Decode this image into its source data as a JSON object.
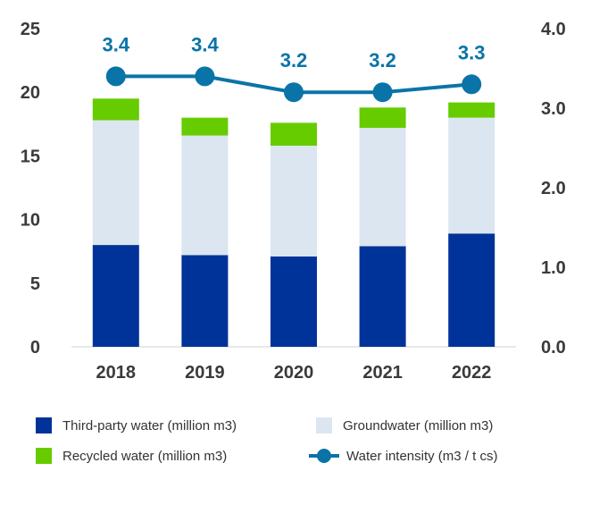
{
  "chart_data": {
    "type": "bar",
    "stacked": true,
    "title": "",
    "xlabel": "",
    "ylabel": "",
    "ylabel_right": "",
    "categories": [
      "2018",
      "2019",
      "2020",
      "2021",
      "2022"
    ],
    "series": [
      {
        "name": "Third-party water (million m3)",
        "axis": "left",
        "kind": "bar",
        "color": "#003399",
        "values": [
          8.0,
          7.2,
          7.1,
          7.9,
          8.9
        ]
      },
      {
        "name": "Groundwater (million m3)",
        "axis": "left",
        "kind": "bar",
        "color": "#dce6f0",
        "values": [
          9.8,
          9.4,
          8.7,
          9.3,
          9.1
        ]
      },
      {
        "name": "Recycled water (million m3)",
        "axis": "left",
        "kind": "bar",
        "color": "#66cc00",
        "values": [
          1.7,
          1.4,
          1.8,
          1.6,
          1.2
        ]
      },
      {
        "name": "Water intensity (m3 / t cs)",
        "axis": "right",
        "kind": "line",
        "color": "#0a74a8",
        "values": [
          3.4,
          3.4,
          3.2,
          3.2,
          3.3
        ],
        "labels": [
          "3.4",
          "3.4",
          "3.2",
          "3.2",
          "3.3"
        ]
      }
    ],
    "ylim": [
      0,
      25
    ],
    "yticks": [
      0,
      5,
      10,
      15,
      20,
      25
    ],
    "ylim_right": [
      0,
      4.0
    ],
    "yticks_right": [
      "0.0",
      "1.0",
      "2.0",
      "3.0",
      "4.0"
    ],
    "grid": false,
    "legend_position": "bottom"
  }
}
